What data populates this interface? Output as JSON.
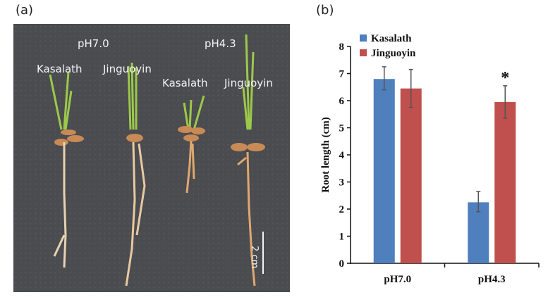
{
  "panels": {
    "a_label": "(a)",
    "b_label": "(b)"
  },
  "photo": {
    "labels": {
      "ph70": "pH7.0",
      "ph43": "pH4.3",
      "kasalath_1": "Kasalath",
      "jinguoyin_1": "Jinguoyin",
      "kasalath_2": "Kasalath",
      "jinguoyin_2": "Jinguoyin"
    },
    "scale_bar": "2 cm",
    "colors": {
      "background": "#4b4c50",
      "shoot": "#9cc94a",
      "root": "#e8c9a0",
      "seed": "#c98a55"
    }
  },
  "chart_data": {
    "type": "bar",
    "title": "",
    "xlabel": "",
    "ylabel": "Root length (cm)",
    "ylim": [
      0,
      8
    ],
    "yticks": [
      0,
      1,
      2,
      3,
      4,
      5,
      6,
      7,
      8
    ],
    "categories": [
      "pH7.0",
      "pH4.3"
    ],
    "series": [
      {
        "name": "Kasalath",
        "color": "#4f7fbd",
        "values": [
          6.8,
          2.25
        ],
        "error_low": [
          6.4,
          1.9
        ],
        "error_high": [
          7.25,
          2.65
        ]
      },
      {
        "name": "Jinguoyin",
        "color": "#c0504d",
        "values": [
          6.45,
          5.95
        ],
        "error_low": [
          5.75,
          5.35
        ],
        "error_high": [
          7.15,
          6.55
        ]
      }
    ],
    "annotations": [
      {
        "text": "*",
        "category": "pH4.3",
        "series": "Jinguoyin"
      }
    ],
    "legend": {
      "position": "top-left inside",
      "entries": [
        "Kasalath",
        "Jinguoyin"
      ]
    },
    "grid": false
  }
}
